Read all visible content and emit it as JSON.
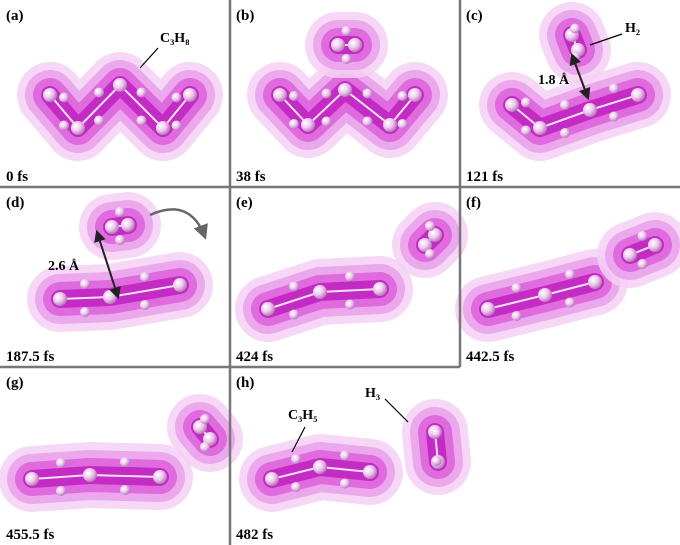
{
  "panels": [
    {
      "label": "(a)",
      "time": "0 fs",
      "annotations": [
        "C₃H₈"
      ]
    },
    {
      "label": "(b)",
      "time": "38 fs",
      "annotations": []
    },
    {
      "label": "(c)",
      "time": "121 fs",
      "annotations": [
        "H₂",
        "1.8 Å"
      ]
    },
    {
      "label": "(d)",
      "time": "187.5 fs",
      "annotations": [
        "2.6 Å"
      ]
    },
    {
      "label": "(e)",
      "time": "424 fs",
      "annotations": []
    },
    {
      "label": "(f)",
      "time": "442.5 fs",
      "annotations": []
    },
    {
      "label": "(g)",
      "time": "455.5 fs",
      "annotations": []
    },
    {
      "label": "(h)",
      "time": "482 fs",
      "annotations": [
        "C₃H₅",
        "H₃"
      ]
    }
  ]
}
